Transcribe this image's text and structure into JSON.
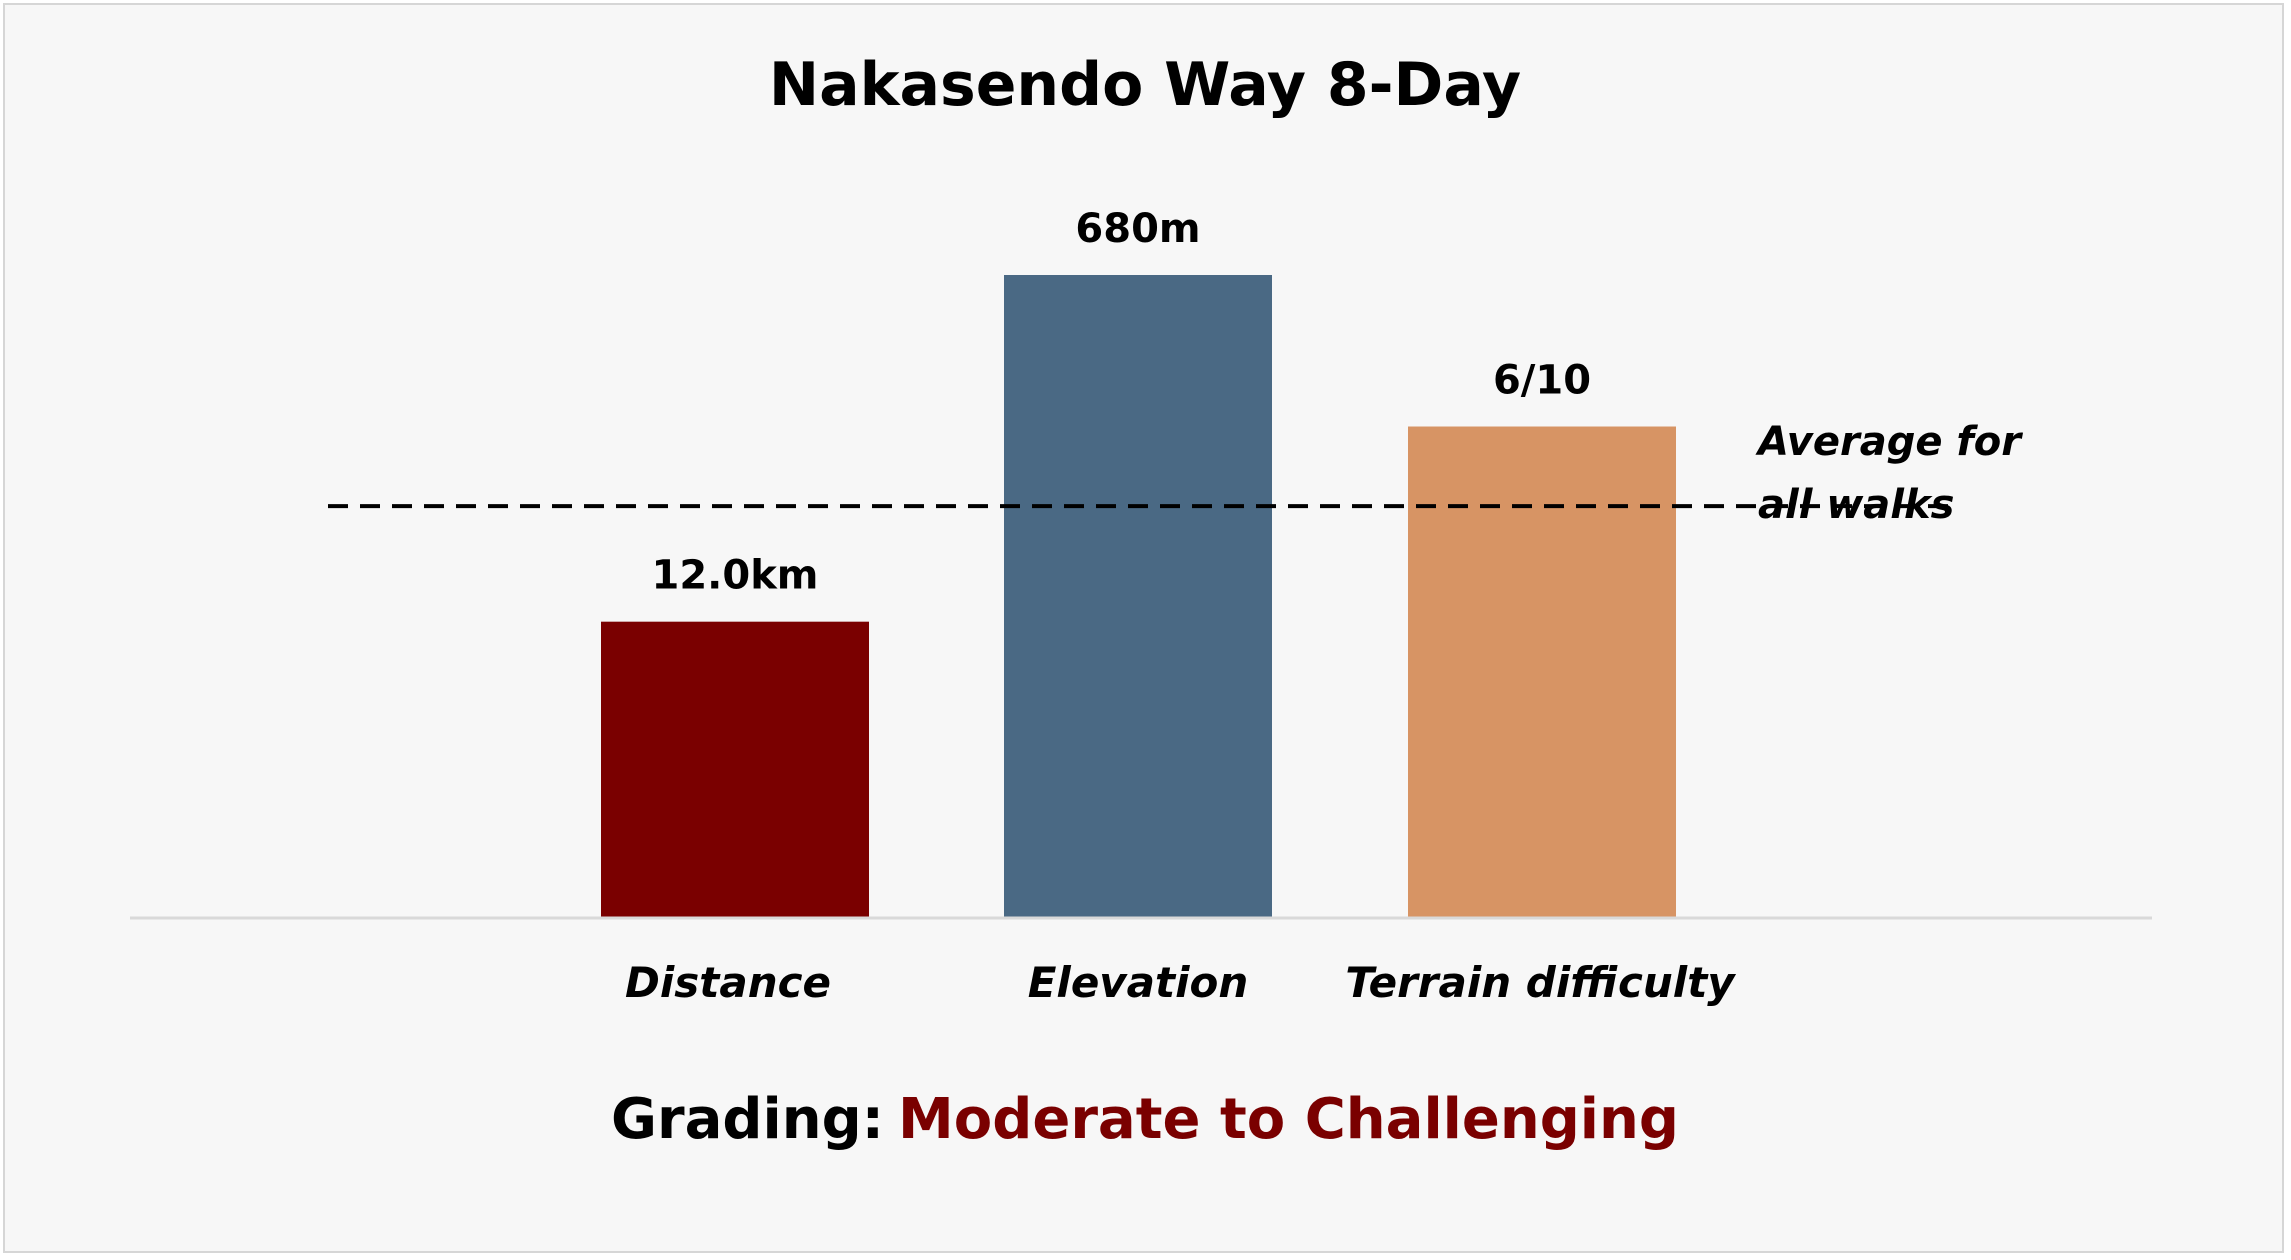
{
  "chart_data": {
    "type": "bar",
    "title": "Nakasendo Way 8-Day",
    "categories": [
      "Distance",
      "Elevation",
      "Terrain difficulty"
    ],
    "value_labels": [
      "12.0km",
      "680m",
      "6/10"
    ],
    "values": [
      0.46,
      1.0,
      0.764
    ],
    "colors": [
      "#7a0000",
      "#4a6984",
      "#d79464"
    ],
    "average": {
      "label_line1": "Average for",
      "label_line2": "all walks",
      "value": 0.64
    },
    "ylim": [
      0,
      1
    ],
    "grid": false,
    "legend": "none"
  },
  "grading": {
    "prefix": "Grading:",
    "value": "Moderate to Challenging",
    "prefix_color": "#000000",
    "value_color": "#7a0000"
  }
}
